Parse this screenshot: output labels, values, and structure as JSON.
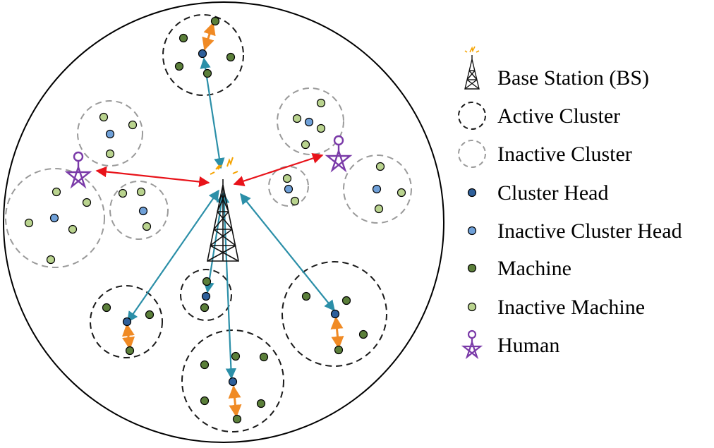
{
  "colors": {
    "cluster_head": "#2e5f9a",
    "inactive_cluster_head": "#6fa0d8",
    "machine": "#5b7f3a",
    "inactive_machine": "#b9d38e",
    "active_cluster_border": "#1a1a1a",
    "inactive_cluster_border": "#9a9a9a",
    "bs_link": "#2b8fa8",
    "human_link": "#e8131a",
    "ch_link": "#f08a24",
    "human": "#7a3aa8",
    "tower": "#111111",
    "tower_signal": "#f5a300"
  },
  "legend": {
    "base_station": "Base Station (BS)",
    "active_cluster": "Active Cluster",
    "inactive_cluster": "Inactive Cluster",
    "cluster_head": "Cluster Head",
    "inactive_cluster_head": "Inactive Cluster Head",
    "machine": "Machine",
    "inactive_machine": "Inactive Machine",
    "human": "Human"
  }
}
